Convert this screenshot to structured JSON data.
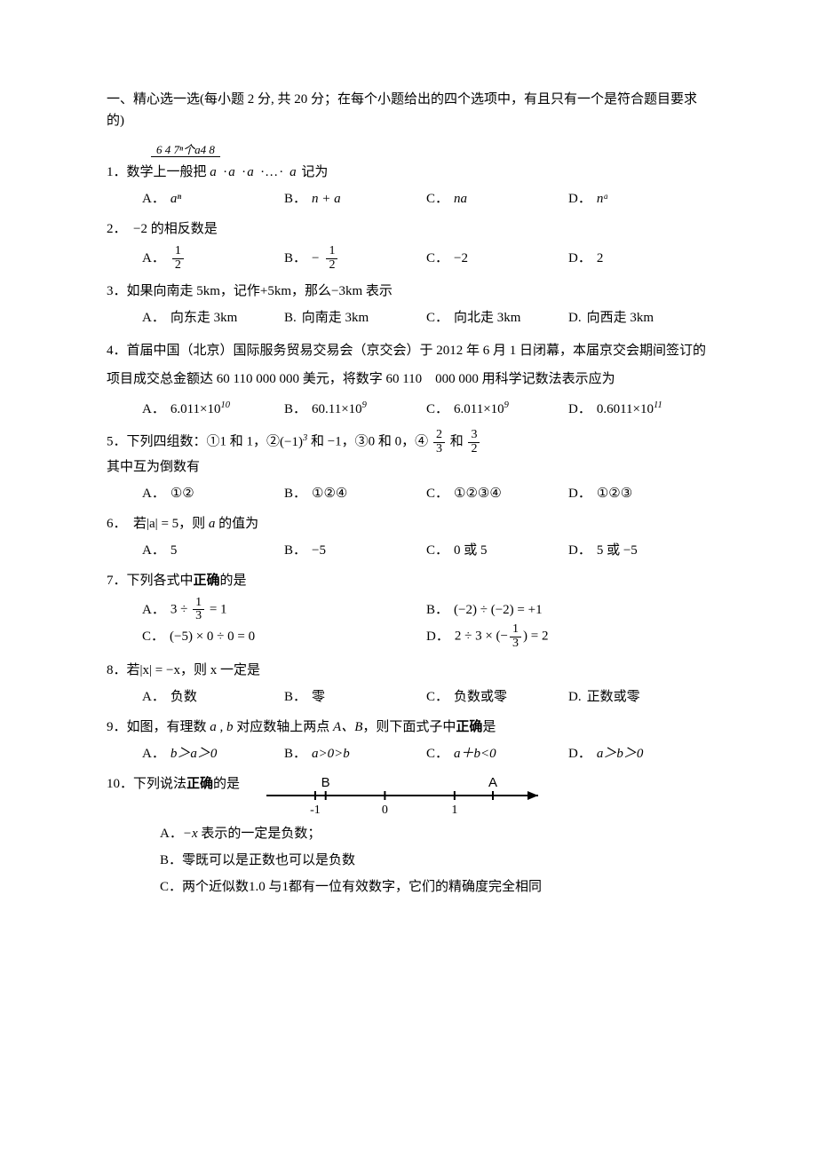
{
  "header": "一、精心选一选(每小题 2 分, 共 20 分；在每个小题给出的四个选项中，有且只有一个是符合题目要求的)",
  "q1": {
    "prefix": "1．数学上一般把",
    "brace_label": "6 4 7ⁿ个a4 8",
    "brace_body": "a ·a ·a ·…· a",
    "suffix": "记为",
    "A": "aⁿ",
    "B": "n + a",
    "C": "na",
    "D": "nᵃ",
    "lblA": "A．",
    "lblB": "B．",
    "lblC": "C．",
    "lblD": "D．"
  },
  "q2": {
    "text": "2．　−2 的相反数是",
    "A_num": "1",
    "A_den": "2",
    "B_num": "1",
    "B_den": "2",
    "B_neg": "−",
    "C": "−2",
    "D": "2",
    "lblA": "A．",
    "lblB": "B．",
    "lblC": "C．",
    "lblD": "D．"
  },
  "q3": {
    "text": "3．如果向南走 5km，记作+5km，那么−3km 表示",
    "A": "向东走 3km",
    "B": "向南走 3km",
    "C": "向北走 3km",
    "D": "向西走 3km",
    "lblA": "A．",
    "lblB": "B.",
    "lblC": "C．",
    "lblD": "D."
  },
  "q4": {
    "text": "4．首届中国（北京）国际服务贸易交易会（京交会）于 2012 年 6 月 1 日闭幕，本届京交会期间签订的 项目成交总金额达 60 110 000 000 美元，将数字 60 110　000 000 用科学记数法表示应为",
    "A_base": "6.011×10",
    "A_exp": "10",
    "B_base": "60.11×10",
    "B_exp": "9",
    "C_base": "6.011×10",
    "C_exp": "9",
    "D_base": "0.6011×10",
    "D_exp": "11",
    "lblA": "A．",
    "lblB": "B．",
    "lblC": "C．",
    "lblD": "D．"
  },
  "q5": {
    "pre": "5．下列四组数：①1 和 1，②",
    "p2": "(−1)",
    "p2exp": "3",
    "p2b": " 和 −1，③0 和 0，④",
    "f1n": "2",
    "f1d": "3",
    "mid": " 和 ",
    "f2n": "3",
    "f2d": "2",
    "line2": "其中互为倒数有",
    "A": "①②",
    "B": "①②④",
    "C": "①②③④",
    "D": "①②③",
    "lblA": "A．",
    "lblB": "B．",
    "lblC": "C．",
    "lblD": "D．"
  },
  "q6": {
    "pre": "6．　若",
    "abs": "|a|",
    "eq": " = 5，则 ",
    "var": "a",
    "post": " 的值为",
    "A": "5",
    "B": "−5",
    "C": "0 或 5",
    "D": "5 或 −5",
    "lblA": "A．",
    "lblB": "B．",
    "lblC": "C．",
    "lblD": "D．"
  },
  "q7": {
    "text": "7．下列各式中正确的是",
    "text_pre": "7．下列各式中",
    "text_bold": "正确",
    "text_post": "的是",
    "A_pre": "3 ÷ ",
    "A_num": "1",
    "A_den": "3",
    "A_post": " = 1",
    "B": "(−2) ÷ (−2) = +1",
    "C": "(−5) × 0 ÷ 0 = 0",
    "D_pre": "2 ÷ 3 × (−",
    "D_num": "1",
    "D_den": "3",
    "D_post": ") = 2",
    "lblA": "A．",
    "lblB": "B．",
    "lblC": "C．",
    "lblD": "D．"
  },
  "q8": {
    "pre": "8．若",
    "abs": "|x|",
    "eq": " = −x，则 x 一定是",
    "A": "负数",
    "B": "零",
    "C": "负数或零",
    "D": "正数或零",
    "lblA": "A．",
    "lblB": "B．",
    "lblC": "C．",
    "lblD": "D."
  },
  "q9": {
    "pre": "9．如图，有理数 ",
    "vars": "a , b",
    "mid": " 对应数轴上两点 ",
    "pts": "A、B",
    "post": "，则下面式子中",
    "bold": "正确",
    "post2": "是",
    "A": "b＞a＞0",
    "B": "a>0>b",
    "C": "a＋b<0",
    "D": "a＞b＞0",
    "lblA": "A．",
    "lblB": "B．",
    "lblC": "C．",
    "lblD": "D．",
    "numberline": {
      "ticks": [
        -1,
        0,
        1
      ],
      "B_x": -0.85,
      "A_x": 1.55,
      "xmin": -1.7,
      "xmax": 2.2,
      "labelB": "B",
      "labelA": "A",
      "tickLabels": [
        "-1",
        "0",
        "1"
      ]
    }
  },
  "q10": {
    "pre": "10．下列说法",
    "bold": "正确",
    "post": "的是",
    "A_pre": "A．",
    "A_body": "−x 表示的一定是负数；",
    "B_pre": "B．",
    "B_body": "零既可以是正数也可以是负数",
    "C_pre": "C．",
    "C_body": "两个近似数1.0 与1都有一位有效数字，它们的精确度完全相同"
  }
}
